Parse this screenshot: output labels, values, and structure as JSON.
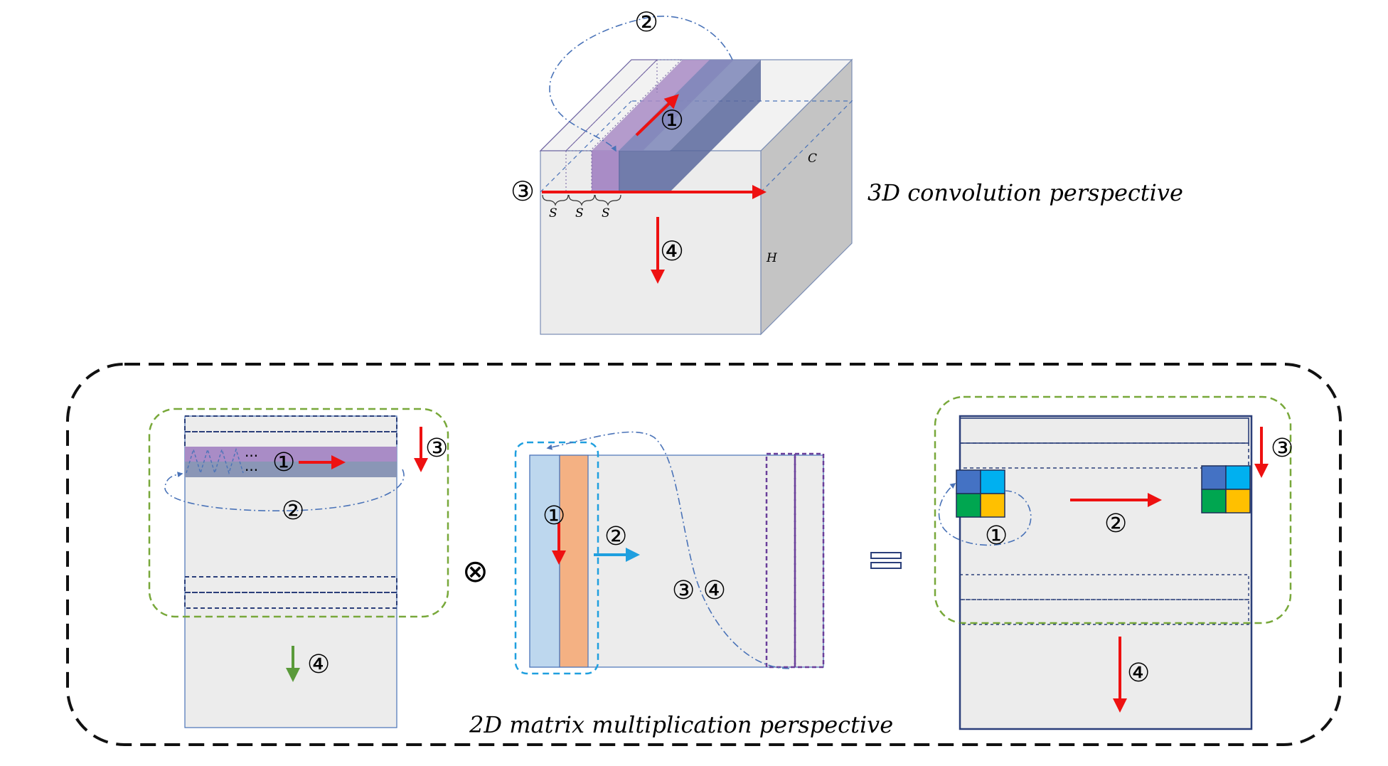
{
  "captions": {
    "conv3d": "3D convolution perspective",
    "matmul2d": "2D matrix multiplication perspective"
  },
  "top_cube": {
    "markers": {
      "m1": "①",
      "m2": "②",
      "m3": "③",
      "m4": "④"
    },
    "labels": {
      "c": "C",
      "h": "H",
      "s1": "S",
      "s2": "S",
      "s3": "S"
    }
  },
  "left_matrix": {
    "markers": {
      "m1": "①",
      "m2": "②",
      "m3": "③",
      "m4": "④"
    },
    "ellipsis_top": "···",
    "ellipsis_bottom": "···"
  },
  "middle_matrix": {
    "markers": {
      "m1": "①",
      "m2": "②",
      "m34": "③ ④"
    }
  },
  "right_matrix": {
    "markers": {
      "m1": "①",
      "m2": "②",
      "m3": "③",
      "m4": "④"
    }
  },
  "operators": {
    "times": "⊗"
  },
  "colors": {
    "red_arrow": "#ee1111",
    "green_arrow": "#5a9a3a",
    "cyan_arrow": "#1f9fdf",
    "purple_strip": "#a98cc6",
    "navy_strip": "#5f6ea0",
    "face_front": "#ececec",
    "face_side": "#c4c4c4",
    "green_dashed": "#78a83a",
    "blue_dashdot": "#4a73b8",
    "cell_blue": "#4472c4",
    "cell_cyan": "#00b0f0",
    "cell_green": "#00a650",
    "cell_yellow": "#ffc000",
    "light_blue_col": "#bdd7ee",
    "orange_col": "#f4b183"
  }
}
